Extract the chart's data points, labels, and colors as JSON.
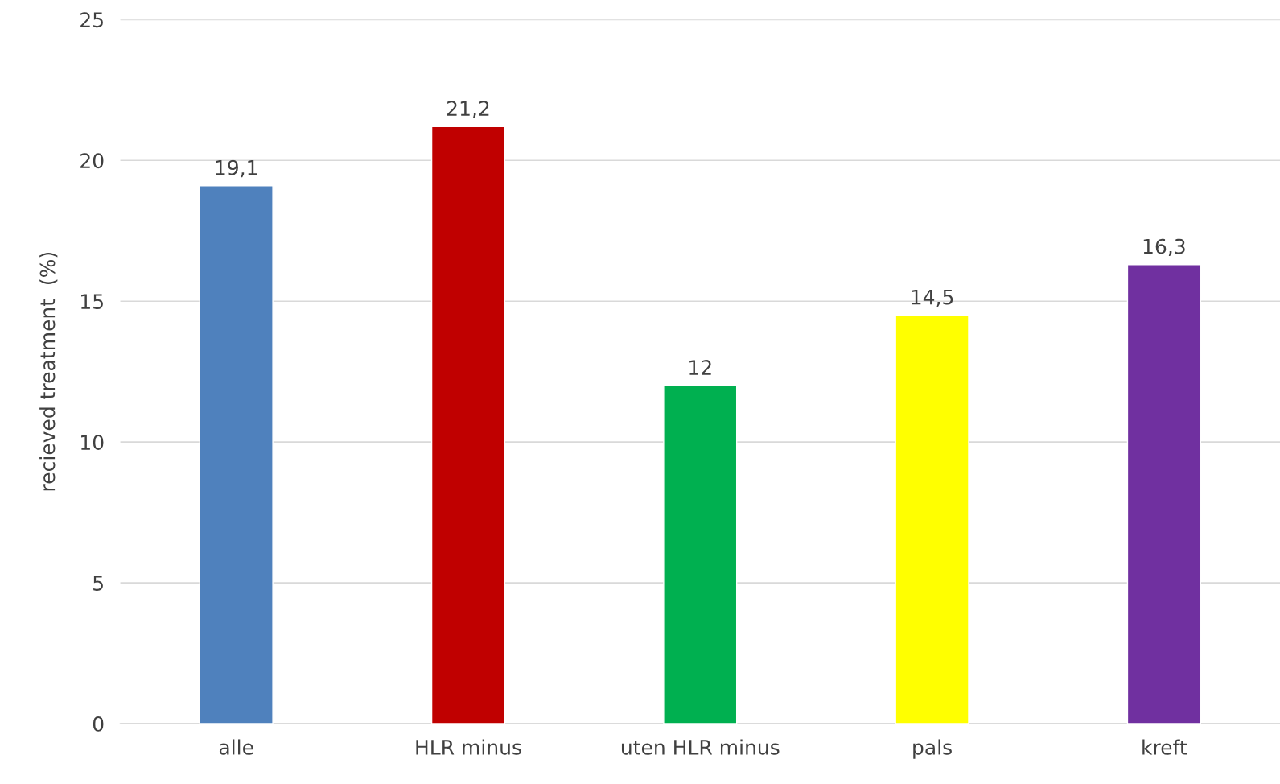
{
  "chart_data": {
    "type": "bar",
    "ylabel": "recieved treatment  (%)",
    "categories": [
      "alle",
      "HLR minus",
      "uten HLR minus",
      "pals",
      "kreft"
    ],
    "values": [
      19.1,
      21.2,
      12,
      14.5,
      16.3
    ],
    "value_labels": [
      "19,1",
      "21,2",
      "12",
      "14,5",
      "16,3"
    ],
    "colors": [
      "#4f81bd",
      "#c00000",
      "#00b050",
      "#ffff00",
      "#7030a0"
    ],
    "ylim": [
      0,
      25
    ],
    "yticks": [
      0,
      5,
      10,
      15,
      20,
      25
    ],
    "grid": "y",
    "legend": false
  }
}
